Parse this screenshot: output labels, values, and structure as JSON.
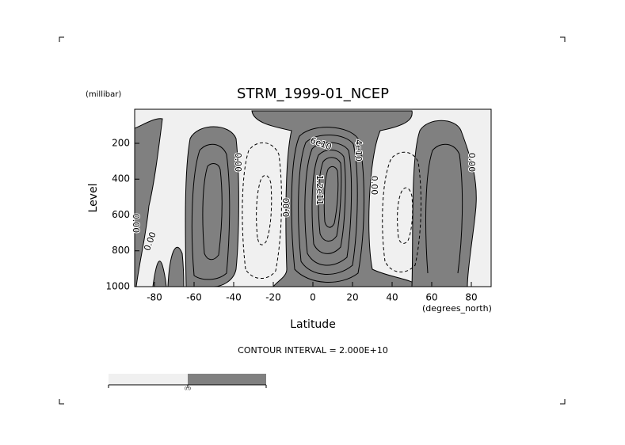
{
  "chart_data": {
    "type": "contour",
    "title": "STRM_1999-01_NCEP",
    "y_unit": "(millibar)",
    "y_label": "Level",
    "x_label": "Latitude",
    "x_unit": "(degrees_north)",
    "note": "CONTOUR INTERVAL = 2.000E+10",
    "xlim": [
      -90,
      90
    ],
    "xticks": [
      -80,
      -60,
      -40,
      -20,
      0,
      20,
      40,
      60,
      80
    ],
    "ylim": [
      1000,
      10
    ],
    "yticks": [
      200,
      400,
      600,
      800,
      1000
    ],
    "contour_labels": [
      "0.00",
      "6e10",
      "4e10",
      "1.2e11",
      "0.00",
      "0.00",
      "0.00",
      "0.00",
      "0.00"
    ],
    "colorbar_label": "0.0"
  }
}
